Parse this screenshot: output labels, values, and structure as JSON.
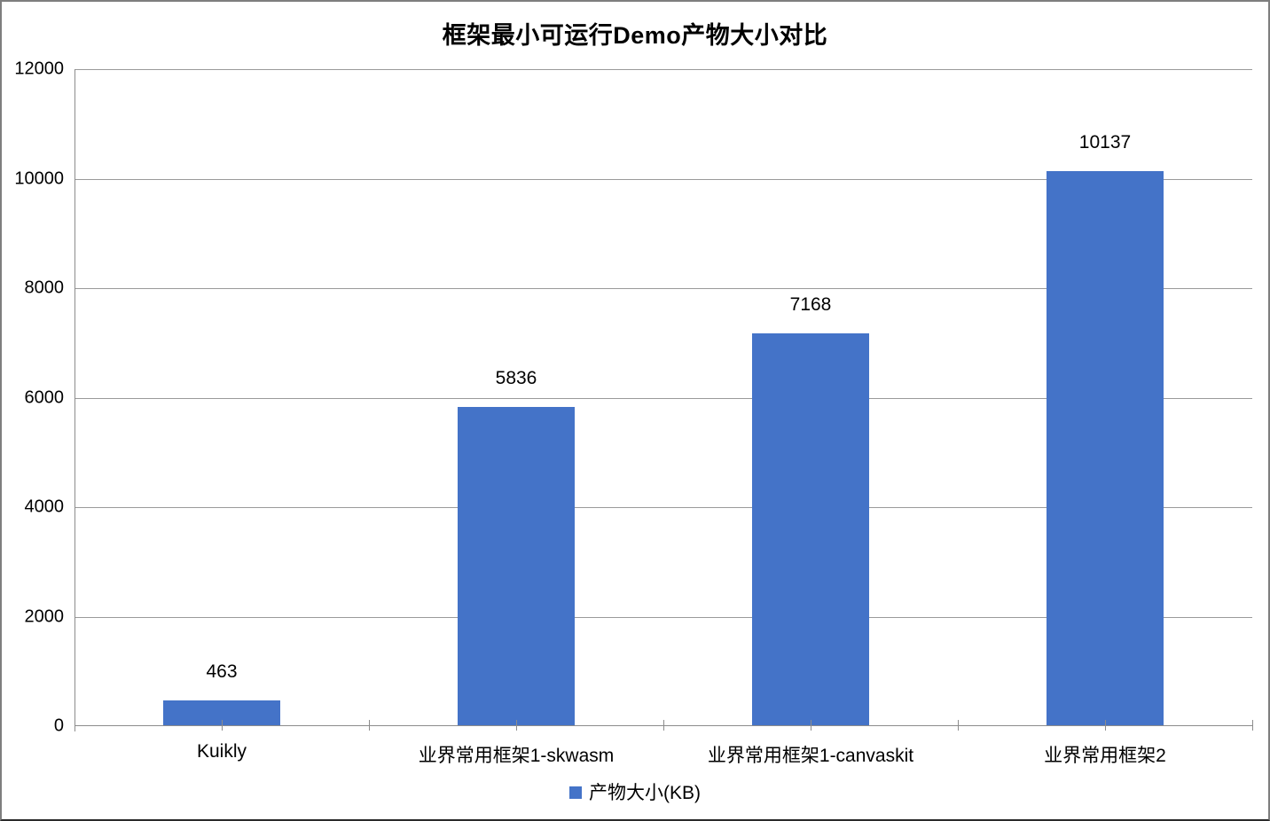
{
  "window": {
    "title": "框架最小可运行Demo产物大小对比"
  },
  "chart_data": {
    "type": "bar",
    "title": "框架最小可运行Demo产物大小对比",
    "categories": [
      "Kuikly",
      "业界常用框架1-skwasm",
      "业界常用框架1-canvaskit",
      "业界常用框架2"
    ],
    "series": [
      {
        "name": "产物大小(KB)",
        "values": [
          463,
          5836,
          7168,
          10137
        ]
      }
    ],
    "data_labels": [
      "463",
      "5836",
      "7168",
      "10137"
    ],
    "xlabel": "",
    "ylabel": "",
    "ylim": [
      0,
      12000
    ],
    "y_ticks": [
      0,
      2000,
      4000,
      6000,
      8000,
      10000,
      12000
    ],
    "grid": "horizontal",
    "legend_position": "bottom-center",
    "colors": {
      "bar": "#4473C8",
      "axis": "#8c8c8c",
      "gridline": "#9a9a9a",
      "text": "#000000",
      "background": "#ffffff"
    }
  }
}
